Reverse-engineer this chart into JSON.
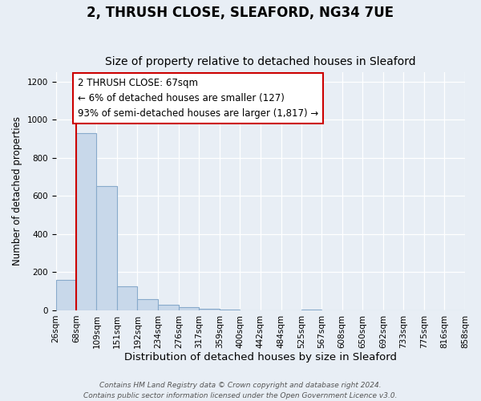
{
  "title": "2, THRUSH CLOSE, SLEAFORD, NG34 7UE",
  "subtitle": "Size of property relative to detached houses in Sleaford",
  "xlabel": "Distribution of detached houses by size in Sleaford",
  "ylabel": "Number of detached properties",
  "bin_edges": [
    26,
    68,
    109,
    151,
    192,
    234,
    276,
    317,
    359,
    400,
    442,
    484,
    525,
    567,
    608,
    650,
    692,
    733,
    775,
    816,
    858
  ],
  "bar_heights": [
    160,
    930,
    650,
    125,
    60,
    30,
    15,
    10,
    5,
    0,
    0,
    0,
    5,
    0,
    0,
    0,
    0,
    0,
    0,
    0
  ],
  "bar_color": "#c8d8ea",
  "bar_edge_color": "#88aacb",
  "background_color": "#e8eef5",
  "grid_color": "#ffffff",
  "red_line_x": 67,
  "red_line_color": "#cc0000",
  "annotation_line1": "2 THRUSH CLOSE: 67sqm",
  "annotation_line2": "← 6% of detached houses are smaller (127)",
  "annotation_line3": "93% of semi-detached houses are larger (1,817) →",
  "annotation_box_edgecolor": "#cc0000",
  "annotation_bg": "#ffffff",
  "ylim": [
    0,
    1250
  ],
  "yticks": [
    0,
    200,
    400,
    600,
    800,
    1000,
    1200
  ],
  "footer_line1": "Contains HM Land Registry data © Crown copyright and database right 2024.",
  "footer_line2": "Contains public sector information licensed under the Open Government Licence v3.0.",
  "title_fontsize": 12,
  "subtitle_fontsize": 10,
  "tick_label_fontsize": 7.5,
  "ylabel_fontsize": 8.5,
  "xlabel_fontsize": 9.5,
  "annotation_fontsize": 8.5,
  "footer_fontsize": 6.5
}
